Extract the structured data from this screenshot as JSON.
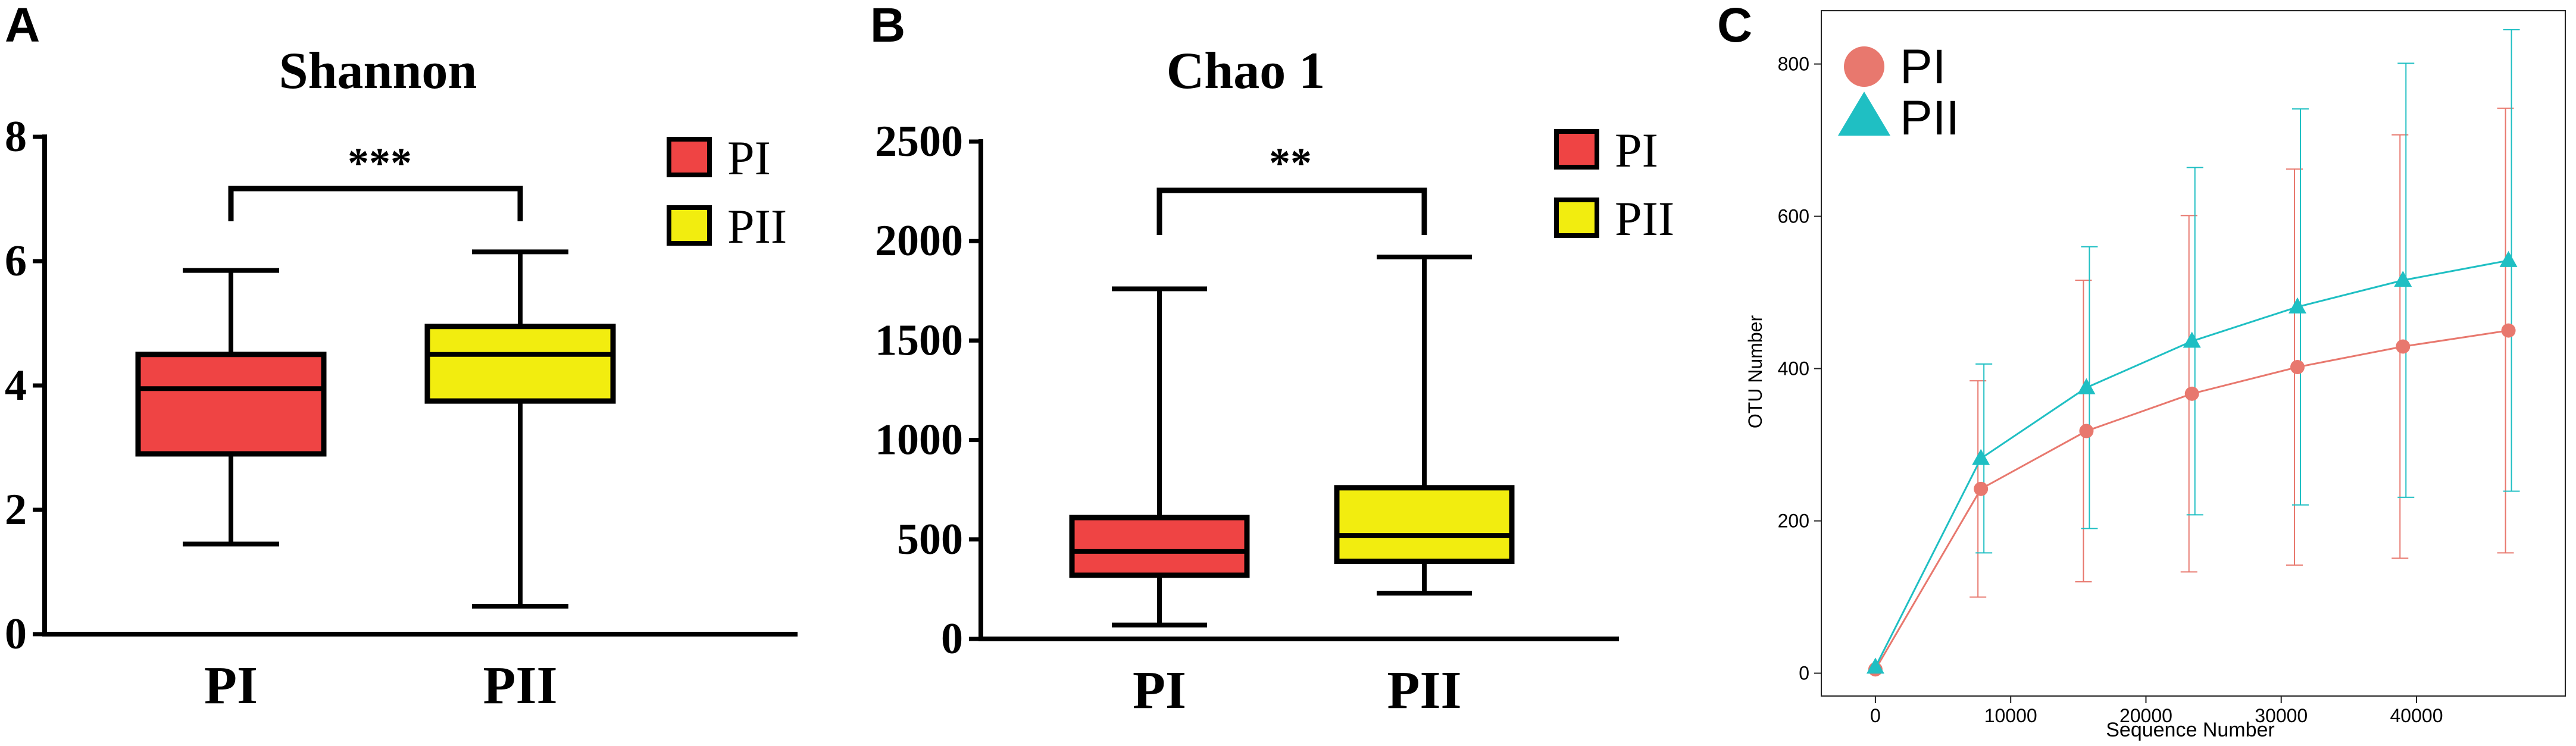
{
  "panels": [
    {
      "letter": "A",
      "chart_data": {
        "type": "boxplot",
        "title": "Shannon",
        "categories": [
          "PI",
          "PII"
        ],
        "ylim": [
          0,
          8
        ],
        "yticks": [
          "0",
          "2",
          "4",
          "6",
          "8"
        ],
        "boxes": [
          {
            "name": "PI",
            "min": 1.45,
            "q1": 2.9,
            "median": 3.95,
            "q3": 4.5,
            "max": 5.85,
            "color": "#ef4444"
          },
          {
            "name": "PII",
            "min": 0.45,
            "q1": 3.75,
            "median": 4.5,
            "q3": 4.95,
            "max": 6.15,
            "color": "#f2ed0f"
          }
        ],
        "significance": "***",
        "legend": [
          {
            "label": "PI",
            "color": "#ef4444"
          },
          {
            "label": "PII",
            "color": "#f2ed0f"
          }
        ]
      }
    },
    {
      "letter": "B",
      "chart_data": {
        "type": "boxplot",
        "title": "Chao 1",
        "categories": [
          "PI",
          "PII"
        ],
        "ylim": [
          0,
          2500
        ],
        "yticks": [
          "0",
          "500",
          "1000",
          "1500",
          "2000",
          "2500"
        ],
        "boxes": [
          {
            "name": "PI",
            "min": 70,
            "q1": 320,
            "median": 440,
            "q3": 610,
            "max": 1760,
            "color": "#ef4444"
          },
          {
            "name": "PII",
            "min": 230,
            "q1": 390,
            "median": 520,
            "q3": 760,
            "max": 1920,
            "color": "#f2ed0f"
          }
        ],
        "significance": "**",
        "legend": [
          {
            "label": "PI",
            "color": "#ef4444"
          },
          {
            "label": "PII",
            "color": "#f2ed0f"
          }
        ]
      }
    },
    {
      "letter": "C",
      "chart_data": {
        "type": "line",
        "xlabel": "Sequence Number",
        "ylabel": "OTU Number",
        "xlim": [
          -4000,
          51000
        ],
        "ylim": [
          -30,
          870
        ],
        "xticks": [
          0,
          10000,
          20000,
          30000,
          40000
        ],
        "yticks": [
          0,
          200,
          400,
          600,
          800
        ],
        "x": [
          0,
          7800,
          15600,
          23400,
          31200,
          39000,
          46800
        ],
        "series": [
          {
            "name": "PI",
            "color": "#e8786e",
            "marker": "circle",
            "values": [
              5,
              242,
              318,
              367,
              402,
              429,
              450
            ],
            "err": [
              0,
              142,
              198,
              234,
              260,
              278,
              292
            ]
          },
          {
            "name": "PII",
            "color": "#1fbfc3",
            "marker": "triangle",
            "values": [
              8,
              282,
              375,
              436,
              481,
              516,
              542
            ],
            "err": [
              0,
              124,
              185,
              228,
              260,
              285,
              303
            ]
          }
        ],
        "legend_position": "top-left"
      }
    }
  ]
}
